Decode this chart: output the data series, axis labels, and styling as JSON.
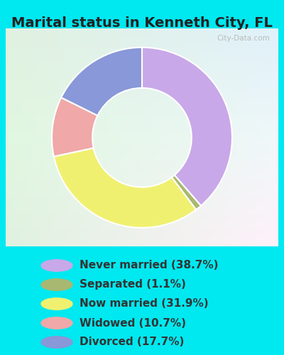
{
  "title": "Marital status in Kenneth City, FL",
  "legend_labels": [
    "Never married (38.7%)",
    "Separated (1.1%)",
    "Now married (31.9%)",
    "Widowed (10.7%)",
    "Divorced (17.7%)"
  ],
  "wedge_values": [
    38.7,
    1.1,
    31.9,
    10.7,
    17.7
  ],
  "wedge_colors": [
    "#c8a8e8",
    "#a8b870",
    "#f0f070",
    "#f0a8a8",
    "#8898d8"
  ],
  "legend_colors": [
    "#c8a8e8",
    "#a8b870",
    "#f0f070",
    "#f0a8a8",
    "#8898d8"
  ],
  "bg_cyan": "#00e8f0",
  "chart_bg_corners": [
    "#c8e8d8",
    "#e8f0f0",
    "#f0f8f8",
    "#d0e8e0"
  ],
  "watermark": "City-Data.com",
  "title_fontsize": 14,
  "legend_fontsize": 11,
  "title_color": "#222222",
  "legend_text_color": "#333333"
}
